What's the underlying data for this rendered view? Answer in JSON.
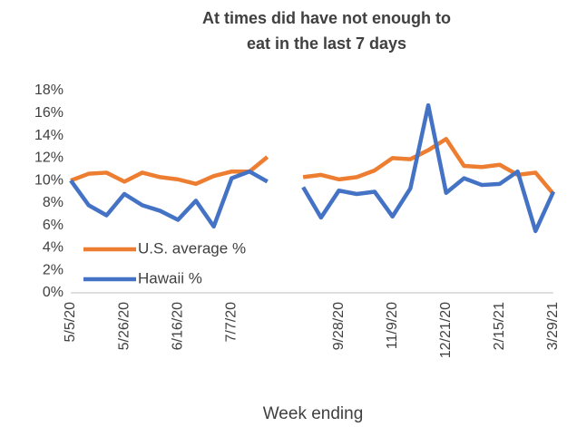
{
  "chart_data": {
    "type": "line",
    "title": "At times did have not enough to eat in the last 7 days",
    "x_label": "Week ending",
    "categories": [
      "5/5/20",
      null,
      null,
      "5/26/20",
      null,
      null,
      "6/16/20",
      null,
      null,
      "7/7/20",
      null,
      null,
      null,
      null,
      null,
      "9/28/20",
      null,
      null,
      "11/9/20",
      null,
      null,
      "12/21/20",
      null,
      null,
      "2/15/21",
      null,
      null,
      "3/29/21"
    ],
    "series": [
      {
        "name": "U.S. average %",
        "color": "#ed7d31",
        "values": [
          10.0,
          10.6,
          10.7,
          9.9,
          10.7,
          10.3,
          10.1,
          9.7,
          10.4,
          10.8,
          10.8,
          12.1,
          null,
          10.3,
          10.5,
          10.1,
          10.3,
          10.9,
          12.0,
          11.9,
          12.7,
          13.7,
          11.3,
          11.2,
          11.4,
          10.5,
          10.7,
          8.8
        ]
      },
      {
        "name": "Hawaii %",
        "color": "#4472c4",
        "values": [
          10.0,
          7.8,
          6.9,
          8.8,
          7.8,
          7.3,
          6.5,
          8.2,
          5.9,
          10.2,
          10.8,
          9.9,
          null,
          9.4,
          6.7,
          9.1,
          8.8,
          9.0,
          6.8,
          9.3,
          16.7,
          8.9,
          10.2,
          9.6,
          9.7,
          10.8,
          5.5,
          9.0
        ]
      }
    ],
    "ylim": [
      0,
      18
    ],
    "yticks": [
      {
        "value": 0,
        "label": "0%"
      },
      {
        "value": 2,
        "label": "2%"
      },
      {
        "value": 4,
        "label": "4%"
      },
      {
        "value": 6,
        "label": "6%"
      },
      {
        "value": 8,
        "label": "8%"
      },
      {
        "value": 10,
        "label": "10%"
      },
      {
        "value": 12,
        "label": "12%"
      },
      {
        "value": 14,
        "label": "14%"
      },
      {
        "value": 16,
        "label": "16%"
      },
      {
        "value": 18,
        "label": "18%"
      }
    ],
    "grid": false,
    "legend": "lower-left"
  }
}
